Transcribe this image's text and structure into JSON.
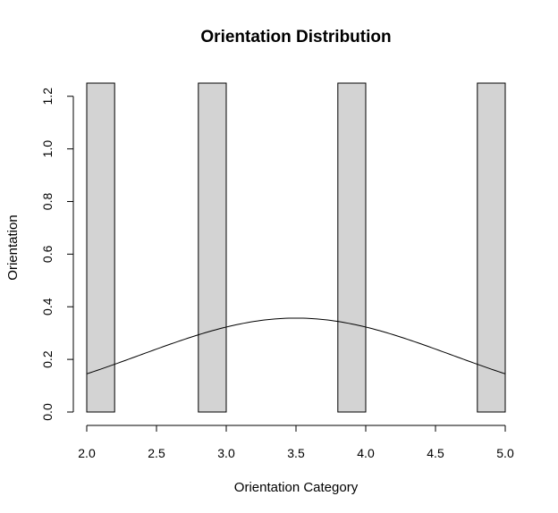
{
  "chart_data": {
    "type": "bar",
    "title": "Orientation Distribution",
    "xlabel": "Orientation Category",
    "ylabel": "Orientation",
    "xlim": [
      2.0,
      5.0
    ],
    "ylim": [
      0.0,
      1.25
    ],
    "x_ticks": [
      2.0,
      2.5,
      3.0,
      3.5,
      4.0,
      4.5,
      5.0
    ],
    "x_tick_labels": [
      "2.0",
      "2.5",
      "3.0",
      "3.5",
      "4.0",
      "4.5",
      "5.0"
    ],
    "y_ticks": [
      0.0,
      0.2,
      0.4,
      0.6,
      0.8,
      1.0,
      1.2
    ],
    "y_tick_labels": [
      "0.0",
      "0.2",
      "0.4",
      "0.6",
      "0.8",
      "1.0",
      "1.2"
    ],
    "bar_color": "#d3d3d3",
    "bars": [
      {
        "x0": 2.0,
        "x1": 2.2,
        "value": 1.25
      },
      {
        "x0": 2.8,
        "x1": 3.0,
        "value": 1.25
      },
      {
        "x0": 3.8,
        "x1": 4.0,
        "value": 1.25
      },
      {
        "x0": 4.8,
        "x1": 5.0,
        "value": 1.25
      }
    ],
    "overlay": {
      "type": "normal_density",
      "mean": 3.5,
      "sd": 1.118,
      "x_range": [
        2.0,
        5.0
      ]
    },
    "grid": false,
    "legend": "none"
  }
}
